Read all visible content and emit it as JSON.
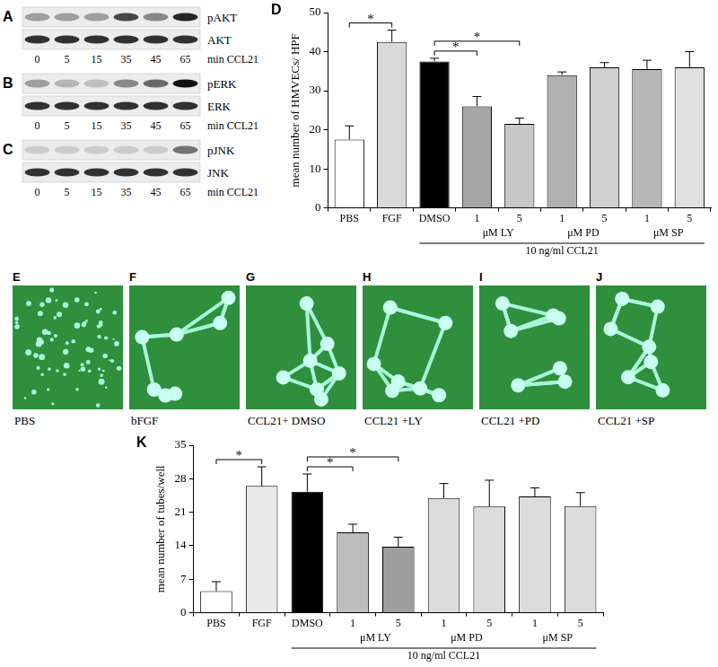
{
  "blots": [
    {
      "letter": "A",
      "lanes": [
        0,
        5,
        15,
        35,
        45,
        65
      ],
      "lane_unit": "min CCL21",
      "rows": [
        {
          "label": "pAKT",
          "bands": [
            0.35,
            0.35,
            0.35,
            0.75,
            0.45,
            0.9
          ]
        },
        {
          "label": "AKT",
          "bands": [
            0.85,
            0.85,
            0.85,
            0.85,
            0.85,
            0.85
          ]
        }
      ]
    },
    {
      "letter": "B",
      "lanes": [
        0,
        5,
        15,
        35,
        45,
        65
      ],
      "lane_unit": "min CCL21",
      "rows": [
        {
          "label": "pERK",
          "bands": [
            0.35,
            0.25,
            0.2,
            0.45,
            0.6,
            1.0
          ]
        },
        {
          "label": "ERK",
          "bands": [
            0.85,
            0.85,
            0.85,
            0.85,
            0.85,
            0.85
          ]
        }
      ]
    },
    {
      "letter": "C",
      "lanes": [
        0,
        5,
        15,
        35,
        45,
        65
      ],
      "lane_unit": "min CCL21",
      "rows": [
        {
          "label": "pJNK",
          "bands": [
            0.15,
            0.15,
            0.15,
            0.15,
            0.15,
            0.55
          ]
        },
        {
          "label": "JNK",
          "bands": [
            0.85,
            0.85,
            0.85,
            0.85,
            0.85,
            0.85
          ]
        }
      ]
    }
  ],
  "chart_data": [
    {
      "letter": "D",
      "type": "bar",
      "y_label": "mean number of HMVECs/ HPF",
      "categories": [
        "PBS",
        "FGF",
        "DMSO",
        "1",
        "5",
        "1",
        "5",
        "1",
        "5"
      ],
      "values": [
        17.5,
        42.5,
        37.5,
        26,
        21.5,
        34,
        36,
        35.5,
        36
      ],
      "errors": [
        3.5,
        3,
        0.8,
        2.5,
        1.5,
        0.8,
        1.2,
        2.3,
        4
      ],
      "colors": [
        "#ffffff",
        "#d9d9d9",
        "#000000",
        "#a6a6a6",
        "#c8c8c8",
        "#b0b0b0",
        "#d0d0d0",
        "#b8b8b8",
        "#e0e0e0"
      ],
      "ylim": [
        0,
        50
      ],
      "yticks": [
        0,
        10,
        20,
        30,
        40,
        50
      ],
      "grid": false,
      "groups": [
        {
          "label": "μM LY",
          "categories": [
            3,
            4
          ]
        },
        {
          "label": "μM PD",
          "categories": [
            5,
            6
          ]
        },
        {
          "label": "μM SP",
          "categories": [
            7,
            8
          ]
        }
      ],
      "treatment": {
        "label": "10 ng/ml CCL21",
        "categories": [
          2,
          3,
          4,
          5,
          6,
          7,
          8
        ]
      },
      "significance": [
        {
          "pair": [
            0,
            1
          ],
          "label": "*"
        },
        {
          "pair": [
            2,
            3
          ],
          "label": "*"
        },
        {
          "pair": [
            2,
            4
          ],
          "label": "*"
        }
      ]
    },
    {
      "letter": "K",
      "type": "bar",
      "y_label": "mean number of tubes/well",
      "categories": [
        "PBS",
        "FGF",
        "DMSO",
        "1",
        "5",
        "1",
        "5",
        "1",
        "5"
      ],
      "values": [
        4.5,
        26.5,
        25.3,
        16.8,
        13.8,
        24,
        22.2,
        24.3,
        22.3
      ],
      "errors": [
        2,
        4,
        3.7,
        1.7,
        2,
        3,
        5.5,
        1.8,
        2.8
      ],
      "colors": [
        "#ffffff",
        "#e8e8e8",
        "#000000",
        "#bdbdbd",
        "#9e9e9e",
        "#dcdcdc",
        "#dcdcdc",
        "#dcdcdc",
        "#dcdcdc"
      ],
      "ylim": [
        0,
        35
      ],
      "yticks": [
        0,
        7,
        14,
        21,
        28,
        35
      ],
      "grid": false,
      "groups": [
        {
          "label": "μM LY",
          "categories": [
            3,
            4
          ]
        },
        {
          "label": "μM PD",
          "categories": [
            5,
            6
          ]
        },
        {
          "label": "μM SP",
          "categories": [
            7,
            8
          ]
        }
      ],
      "treatment": {
        "label": "10 ng/ml CCL21",
        "categories": [
          2,
          3,
          4,
          5,
          6,
          7,
          8
        ]
      },
      "significance": [
        {
          "pair": [
            0,
            1
          ],
          "label": "*"
        },
        {
          "pair": [
            2,
            3
          ],
          "label": "*"
        },
        {
          "pair": [
            2,
            4
          ],
          "label": "*"
        }
      ]
    }
  ],
  "images": [
    {
      "letter": "E",
      "label": "PBS"
    },
    {
      "letter": "F",
      "label": "bFGF"
    },
    {
      "letter": "G",
      "label": "CCL21+ DMSO"
    },
    {
      "letter": "H",
      "label": "CCL21 +LY"
    },
    {
      "letter": "I",
      "label": "CCL21 +PD"
    },
    {
      "letter": "J",
      "label": "CCL21 +SP"
    }
  ]
}
